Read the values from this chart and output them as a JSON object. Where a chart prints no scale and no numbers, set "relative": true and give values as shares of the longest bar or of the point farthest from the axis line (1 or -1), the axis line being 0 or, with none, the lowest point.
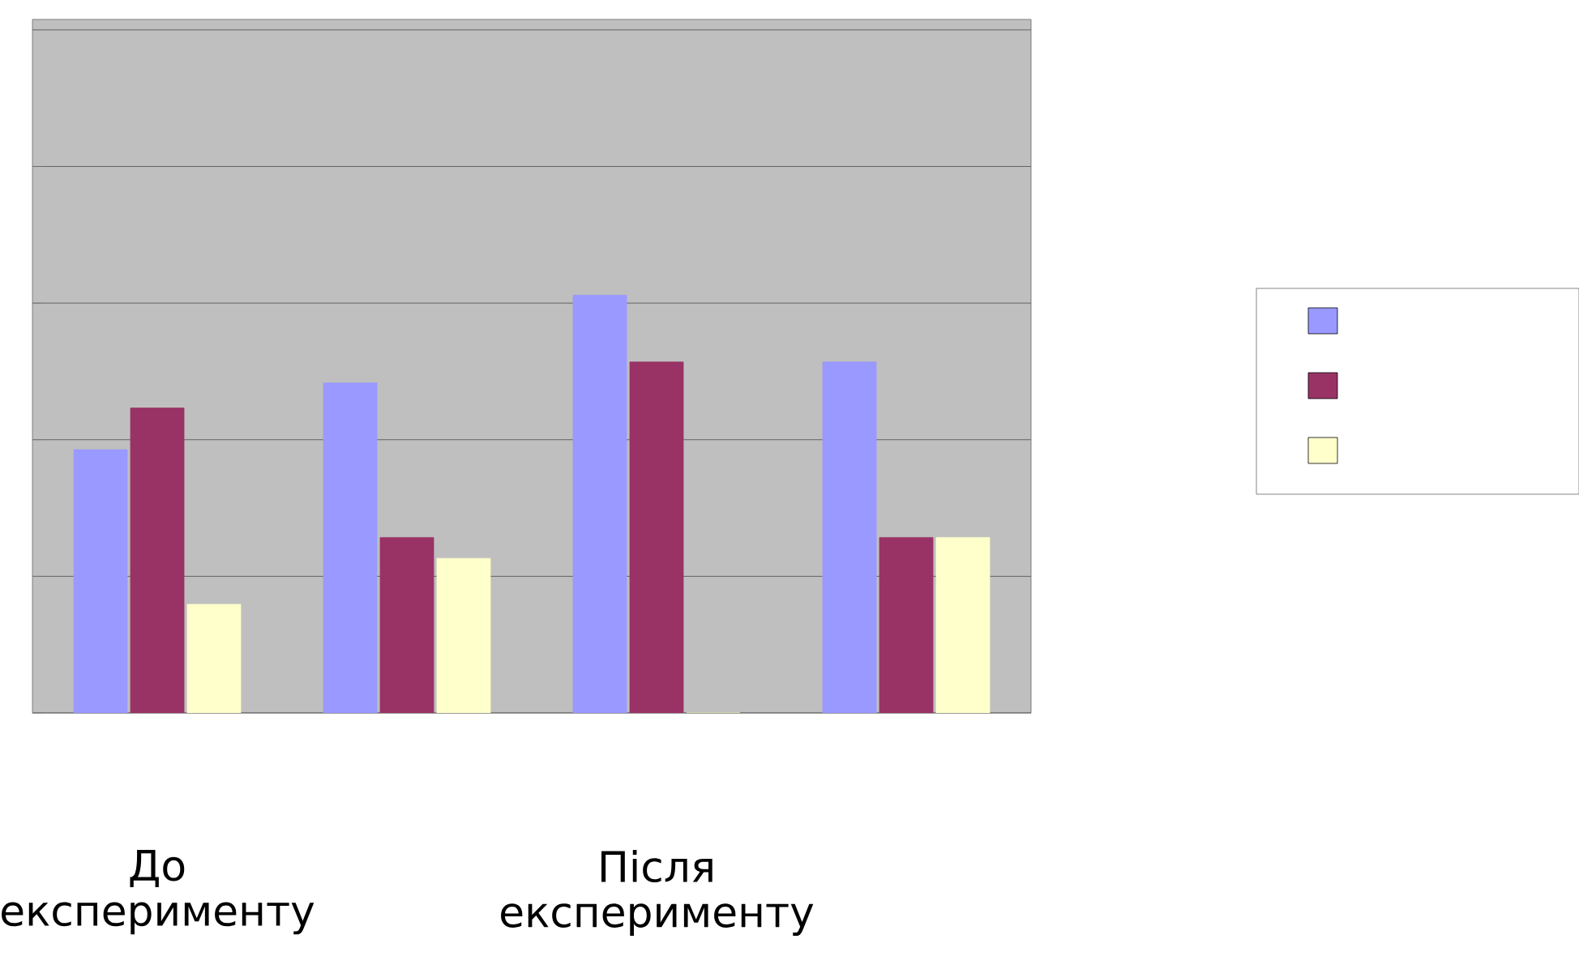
{
  "chart_data": {
    "type": "bar",
    "relative": true,
    "grid": "y",
    "categories": [
      "До експерименту",
      null,
      "Після експерименту",
      null
    ],
    "series": [
      {
        "color": "#9999ff",
        "values": [
          0.63,
          0.79,
          1,
          0.84
        ]
      },
      {
        "color": "#993366",
        "values": [
          0.73,
          0.42,
          0.84,
          0.42
        ]
      },
      {
        "color": "#ffffcc",
        "values": [
          0.26,
          0.37,
          0,
          0.42
        ]
      }
    ]
  }
}
